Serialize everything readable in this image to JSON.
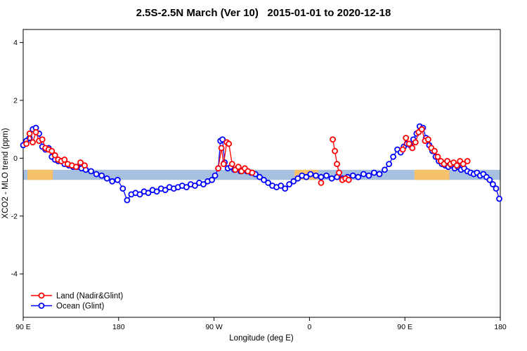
{
  "chart_data": {
    "type": "line",
    "marker": "open-circle",
    "title": "2.5S-2.5N March (Ver 10)   2015-01-01 to 2020-12-18",
    "xlabel": "Longitude (deg E)",
    "ylabel": "XCO2 - MLO trend (ppm)",
    "xlim": [
      90,
      540
    ],
    "ylim": [
      -5.5,
      4.45
    ],
    "grid": false,
    "xticks": [
      {
        "v": 90,
        "label": "90 E"
      },
      {
        "v": 180,
        "label": "180"
      },
      {
        "v": 270,
        "label": "90 W"
      },
      {
        "v": 360,
        "label": "0"
      },
      {
        "v": 450,
        "label": "90 E"
      },
      {
        "v": 540,
        "label": "180"
      }
    ],
    "yticks": [
      -4,
      -2,
      0,
      2,
      4
    ],
    "band": {
      "top": -0.4,
      "bottom": -0.75,
      "color": "#a8c0e0",
      "orange_color": "#f5c26b",
      "orange_segments": [
        [
          94,
          118
        ],
        [
          346,
          368
        ],
        [
          459,
          492
        ]
      ]
    },
    "legend": {
      "position": "bottom-left"
    },
    "series": [
      {
        "id": "land",
        "name": "Land (Nadir&Glint)",
        "color": "#ff0000",
        "segments": [
          [
            [
              93,
              0.5
            ],
            [
              96,
              0.85
            ],
            [
              99,
              0.55
            ],
            [
              102,
              0.9
            ],
            [
              105,
              0.6
            ],
            [
              108,
              0.65
            ],
            [
              111,
              0.35
            ],
            [
              114,
              0.3
            ],
            [
              117,
              0.25
            ],
            [
              120,
              0.1
            ],
            [
              123,
              -0.05
            ],
            [
              126,
              -0.1
            ],
            [
              129,
              -0.05
            ],
            [
              132,
              -0.2
            ],
            [
              136,
              -0.25
            ],
            [
              140,
              -0.3
            ],
            [
              144,
              -0.15
            ],
            [
              148,
              -0.25
            ]
          ],
          [
            [
              274,
              -0.35
            ],
            [
              277,
              0.35
            ],
            [
              279,
              -0.2
            ],
            [
              282,
              0.55
            ],
            [
              284,
              0.5
            ],
            [
              287,
              -0.2
            ],
            [
              290,
              -0.4
            ],
            [
              293,
              -0.3
            ],
            [
              296,
              -0.45
            ],
            [
              299,
              -0.35
            ],
            [
              302,
              -0.45
            ],
            [
              306,
              -0.5
            ]
          ],
          [
            [
              371,
              -0.85
            ]
          ],
          [
            [
              382,
              0.65
            ],
            [
              384,
              0.25
            ],
            [
              386,
              -0.2
            ],
            [
              388,
              -0.5
            ],
            [
              391,
              -0.75
            ],
            [
              394,
              -0.7
            ],
            [
              397,
              -0.75
            ]
          ],
          [
            [
              448,
              0.3
            ],
            [
              451,
              0.7
            ],
            [
              454,
              0.5
            ],
            [
              457,
              0.35
            ],
            [
              460,
              0.55
            ],
            [
              463,
              0.9
            ],
            [
              466,
              1.0
            ],
            [
              469,
              0.6
            ],
            [
              472,
              0.65
            ],
            [
              475,
              0.35
            ],
            [
              478,
              0.25
            ],
            [
              481,
              0.05
            ],
            [
              484,
              -0.1
            ],
            [
              487,
              -0.2
            ],
            [
              490,
              -0.1
            ],
            [
              493,
              -0.2
            ],
            [
              496,
              -0.15
            ],
            [
              499,
              -0.25
            ],
            [
              502,
              -0.1
            ],
            [
              505,
              -0.2
            ],
            [
              509,
              -0.1
            ]
          ]
        ]
      },
      {
        "id": "ocean",
        "name": "Ocean (Glint)",
        "color": "#0000ff",
        "segments": [
          [
            [
              90,
              0.45
            ],
            [
              93,
              0.6
            ],
            [
              96,
              0.7
            ],
            [
              99,
              1.0
            ],
            [
              102,
              1.05
            ],
            [
              105,
              0.85
            ],
            [
              108,
              0.4
            ],
            [
              111,
              0.3
            ],
            [
              114,
              0.35
            ],
            [
              117,
              0.05
            ],
            [
              120,
              -0.05
            ],
            [
              123,
              -0.1
            ],
            [
              126,
              -0.1
            ],
            [
              129,
              -0.2
            ],
            [
              133,
              -0.25
            ],
            [
              137,
              -0.3
            ],
            [
              141,
              -0.3
            ],
            [
              145,
              -0.35
            ],
            [
              149,
              -0.4
            ],
            [
              154,
              -0.45
            ],
            [
              159,
              -0.55
            ],
            [
              164,
              -0.6
            ],
            [
              169,
              -0.7
            ],
            [
              174,
              -0.8
            ],
            [
              179,
              -0.75
            ],
            [
              184,
              -1.05
            ],
            [
              188,
              -1.45
            ],
            [
              192,
              -1.25
            ],
            [
              196,
              -1.2
            ],
            [
              200,
              -1.25
            ],
            [
              204,
              -1.15
            ],
            [
              208,
              -1.2
            ],
            [
              212,
              -1.1
            ],
            [
              216,
              -1.15
            ],
            [
              220,
              -1.05
            ],
            [
              224,
              -1.1
            ],
            [
              228,
              -1.0
            ],
            [
              232,
              -1.05
            ],
            [
              236,
              -1.0
            ],
            [
              240,
              -0.95
            ],
            [
              244,
              -1.0
            ],
            [
              248,
              -0.9
            ],
            [
              252,
              -0.95
            ],
            [
              256,
              -0.85
            ],
            [
              260,
              -0.9
            ],
            [
              264,
              -0.8
            ],
            [
              268,
              -0.75
            ],
            [
              271,
              -0.6
            ],
            [
              274,
              -0.35
            ],
            [
              276,
              0.6
            ],
            [
              278,
              0.65
            ],
            [
              280,
              -0.15
            ],
            [
              283,
              -0.35
            ],
            [
              286,
              -0.3
            ],
            [
              289,
              -0.4
            ],
            [
              292,
              -0.35
            ],
            [
              295,
              -0.45
            ],
            [
              298,
              -0.4
            ],
            [
              301,
              -0.45
            ],
            [
              305,
              -0.5
            ],
            [
              309,
              -0.55
            ],
            [
              313,
              -0.65
            ],
            [
              317,
              -0.75
            ],
            [
              321,
              -0.85
            ],
            [
              325,
              -0.95
            ],
            [
              329,
              -1.0
            ],
            [
              333,
              -0.95
            ],
            [
              337,
              -1.05
            ],
            [
              341,
              -0.9
            ],
            [
              345,
              -0.8
            ],
            [
              349,
              -0.7
            ],
            [
              353,
              -0.6
            ],
            [
              357,
              -0.65
            ],
            [
              361,
              -0.55
            ],
            [
              366,
              -0.6
            ],
            [
              371,
              -0.65
            ],
            [
              376,
              -0.6
            ],
            [
              381,
              -0.7
            ],
            [
              386,
              -0.65
            ],
            [
              391,
              -0.7
            ],
            [
              396,
              -0.65
            ],
            [
              401,
              -0.6
            ],
            [
              406,
              -0.65
            ],
            [
              411,
              -0.55
            ],
            [
              416,
              -0.6
            ],
            [
              421,
              -0.5
            ],
            [
              426,
              -0.55
            ],
            [
              431,
              -0.4
            ],
            [
              435,
              -0.2
            ],
            [
              439,
              0.05
            ],
            [
              443,
              0.3
            ],
            [
              446,
              0.2
            ],
            [
              449,
              0.4
            ],
            [
              452,
              0.5
            ],
            [
              455,
              0.45
            ],
            [
              458,
              0.65
            ],
            [
              461,
              0.85
            ],
            [
              464,
              1.1
            ],
            [
              467,
              1.05
            ],
            [
              470,
              0.7
            ],
            [
              473,
              0.45
            ],
            [
              476,
              0.25
            ],
            [
              479,
              0.05
            ],
            [
              482,
              -0.1
            ],
            [
              485,
              -0.2
            ],
            [
              488,
              -0.25
            ],
            [
              491,
              -0.3
            ],
            [
              494,
              -0.25
            ],
            [
              497,
              -0.35
            ],
            [
              500,
              -0.3
            ],
            [
              503,
              -0.4
            ],
            [
              506,
              -0.35
            ],
            [
              509,
              -0.45
            ],
            [
              512,
              -0.5
            ],
            [
              515,
              -0.55
            ],
            [
              518,
              -0.5
            ],
            [
              521,
              -0.6
            ],
            [
              524,
              -0.55
            ],
            [
              527,
              -0.65
            ],
            [
              530,
              -0.75
            ],
            [
              533,
              -0.9
            ],
            [
              536,
              -1.05
            ],
            [
              539,
              -1.4
            ]
          ]
        ]
      }
    ]
  }
}
